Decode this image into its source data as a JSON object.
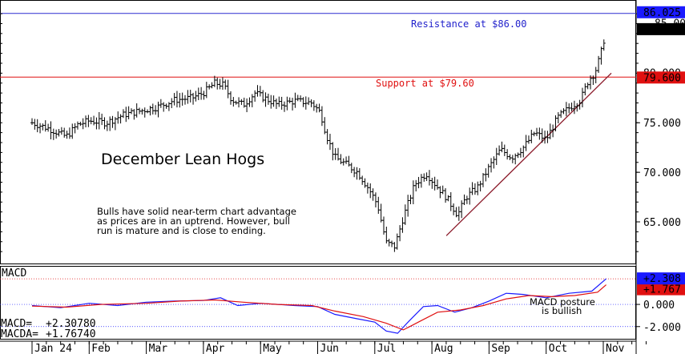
{
  "chart_data": {
    "type": "ohlc",
    "title": "December Lean Hogs",
    "note_lines": [
      "Bulls have solid near-term chart advantage",
      "as prices are in an uptrend. However, bull",
      "run is mature and is close to ending."
    ],
    "months": [
      "Jan 24",
      "Feb",
      "Mar",
      "Apr",
      "May",
      "Jun",
      "Jul",
      "Aug",
      "Sep",
      "Oct",
      "Nov"
    ],
    "price_axis": {
      "ticks": [
        "65.000",
        "70.000",
        "75.000"
      ],
      "ylim": [
        60.8,
        87.3
      ]
    },
    "price_tags": {
      "resistance": {
        "label": "86.025",
        "value": 86.025,
        "color": "#1a1aff"
      },
      "last": {
        "label": "84.400",
        "value": 84.4,
        "color": "#000000"
      },
      "support": {
        "label": "79.600",
        "value": 79.6,
        "color": "#e01010"
      },
      "hidden_partial": [
        "85.000",
        "80.000"
      ]
    },
    "resistance": {
      "label": "Resistance at $86.00",
      "value": 86.0,
      "color": "#2222cc"
    },
    "support": {
      "label": "Support at $79.60",
      "value": 79.6,
      "color": "#e01010"
    },
    "trendline": {
      "start": {
        "month": "Aug",
        "price": 63.6
      },
      "end": {
        "month": "Nov",
        "price": 80.0
      },
      "color": "#8b1a2a"
    },
    "ohlc_points": [
      {
        "m": 0.0,
        "p": 75.0
      },
      {
        "m": 0.3,
        "p": 74.4
      },
      {
        "m": 0.6,
        "p": 73.6
      },
      {
        "m": 0.8,
        "p": 74.8
      },
      {
        "m": 1.0,
        "p": 75.2
      },
      {
        "m": 1.3,
        "p": 75.0
      },
      {
        "m": 1.6,
        "p": 75.8
      },
      {
        "m": 1.9,
        "p": 76.2
      },
      {
        "m": 2.2,
        "p": 76.6
      },
      {
        "m": 2.5,
        "p": 77.3
      },
      {
        "m": 2.8,
        "p": 77.5
      },
      {
        "m": 3.0,
        "p": 78.0
      },
      {
        "m": 3.2,
        "p": 79.0
      },
      {
        "m": 3.35,
        "p": 78.8
      },
      {
        "m": 3.5,
        "p": 77.3
      },
      {
        "m": 3.7,
        "p": 76.8
      },
      {
        "m": 3.9,
        "p": 78.0
      },
      {
        "m": 4.1,
        "p": 77.4
      },
      {
        "m": 4.3,
        "p": 76.8
      },
      {
        "m": 4.6,
        "p": 77.2
      },
      {
        "m": 4.9,
        "p": 77.0
      },
      {
        "m": 5.05,
        "p": 76.0
      },
      {
        "m": 5.15,
        "p": 73.8
      },
      {
        "m": 5.3,
        "p": 71.5
      },
      {
        "m": 5.5,
        "p": 70.8
      },
      {
        "m": 5.7,
        "p": 70.0
      },
      {
        "m": 5.9,
        "p": 68.3
      },
      {
        "m": 6.05,
        "p": 66.7
      },
      {
        "m": 6.2,
        "p": 62.9
      },
      {
        "m": 6.35,
        "p": 62.5
      },
      {
        "m": 6.5,
        "p": 65.5
      },
      {
        "m": 6.7,
        "p": 68.8
      },
      {
        "m": 6.9,
        "p": 69.9
      },
      {
        "m": 7.1,
        "p": 68.5
      },
      {
        "m": 7.25,
        "p": 67.5
      },
      {
        "m": 7.45,
        "p": 65.7
      },
      {
        "m": 7.6,
        "p": 67.5
      },
      {
        "m": 7.8,
        "p": 68.5
      },
      {
        "m": 8.0,
        "p": 70.5
      },
      {
        "m": 8.2,
        "p": 72.3
      },
      {
        "m": 8.4,
        "p": 71.5
      },
      {
        "m": 8.6,
        "p": 72.5
      },
      {
        "m": 8.8,
        "p": 74.0
      },
      {
        "m": 9.0,
        "p": 73.3
      },
      {
        "m": 9.2,
        "p": 75.5
      },
      {
        "m": 9.4,
        "p": 76.5
      },
      {
        "m": 9.6,
        "p": 77.3
      },
      {
        "m": 9.75,
        "p": 79.4
      },
      {
        "m": 9.85,
        "p": 80.0
      },
      {
        "m": 9.95,
        "p": 81.8
      },
      {
        "m": 10.05,
        "p": 84.3
      }
    ],
    "macd": {
      "label": "MACD",
      "readouts": [
        {
          "name": "MACD=",
          "value": "+2.30780"
        },
        {
          "name": "MACDA=",
          "value": "+1.76740"
        }
      ],
      "ticks": [
        "0.000",
        "-2.000"
      ],
      "ylim": [
        -3.1,
        3.4
      ],
      "tags": {
        "macd": {
          "label": "+2.308",
          "value": 2.308,
          "color": "#1a1aff"
        },
        "macda": {
          "label": "+1.767",
          "value": 1.767,
          "color": "#e01010"
        }
      },
      "annotation_lines": [
        "MACD posture",
        "is bullish"
      ],
      "series": [
        {
          "color": "#1a1aff",
          "points": [
            {
              "m": 0.0,
              "v": -0.1
            },
            {
              "m": 0.5,
              "v": -0.3
            },
            {
              "m": 1.0,
              "v": 0.1
            },
            {
              "m": 1.5,
              "v": -0.1
            },
            {
              "m": 2.0,
              "v": 0.2
            },
            {
              "m": 2.5,
              "v": 0.3
            },
            {
              "m": 3.0,
              "v": 0.35
            },
            {
              "m": 3.3,
              "v": 0.6
            },
            {
              "m": 3.6,
              "v": -0.1
            },
            {
              "m": 4.0,
              "v": 0.1
            },
            {
              "m": 4.6,
              "v": -0.1
            },
            {
              "m": 5.0,
              "v": -0.2
            },
            {
              "m": 5.3,
              "v": -0.9
            },
            {
              "m": 5.7,
              "v": -1.3
            },
            {
              "m": 6.0,
              "v": -1.6
            },
            {
              "m": 6.2,
              "v": -2.4
            },
            {
              "m": 6.4,
              "v": -2.6
            },
            {
              "m": 6.6,
              "v": -1.5
            },
            {
              "m": 6.85,
              "v": -0.2
            },
            {
              "m": 7.1,
              "v": -0.1
            },
            {
              "m": 7.4,
              "v": -0.7
            },
            {
              "m": 7.7,
              "v": -0.3
            },
            {
              "m": 8.0,
              "v": 0.3
            },
            {
              "m": 8.3,
              "v": 1.0
            },
            {
              "m": 8.6,
              "v": 0.9
            },
            {
              "m": 9.0,
              "v": 0.6
            },
            {
              "m": 9.4,
              "v": 1.0
            },
            {
              "m": 9.8,
              "v": 1.2
            },
            {
              "m": 10.05,
              "v": 2.308
            }
          ]
        },
        {
          "color": "#e01010",
          "points": [
            {
              "m": 0.0,
              "v": -0.15
            },
            {
              "m": 0.6,
              "v": -0.25
            },
            {
              "m": 1.2,
              "v": 0.0
            },
            {
              "m": 2.0,
              "v": 0.1
            },
            {
              "m": 2.6,
              "v": 0.3
            },
            {
              "m": 3.2,
              "v": 0.4
            },
            {
              "m": 3.7,
              "v": 0.2
            },
            {
              "m": 4.3,
              "v": 0.0
            },
            {
              "m": 4.9,
              "v": -0.1
            },
            {
              "m": 5.3,
              "v": -0.6
            },
            {
              "m": 5.8,
              "v": -1.1
            },
            {
              "m": 6.2,
              "v": -1.7
            },
            {
              "m": 6.5,
              "v": -2.3
            },
            {
              "m": 6.8,
              "v": -1.5
            },
            {
              "m": 7.1,
              "v": -0.7
            },
            {
              "m": 7.5,
              "v": -0.5
            },
            {
              "m": 7.9,
              "v": -0.1
            },
            {
              "m": 8.3,
              "v": 0.5
            },
            {
              "m": 8.7,
              "v": 0.8
            },
            {
              "m": 9.1,
              "v": 0.7
            },
            {
              "m": 9.5,
              "v": 0.8
            },
            {
              "m": 9.9,
              "v": 1.1
            },
            {
              "m": 10.05,
              "v": 1.767
            }
          ]
        }
      ]
    }
  }
}
